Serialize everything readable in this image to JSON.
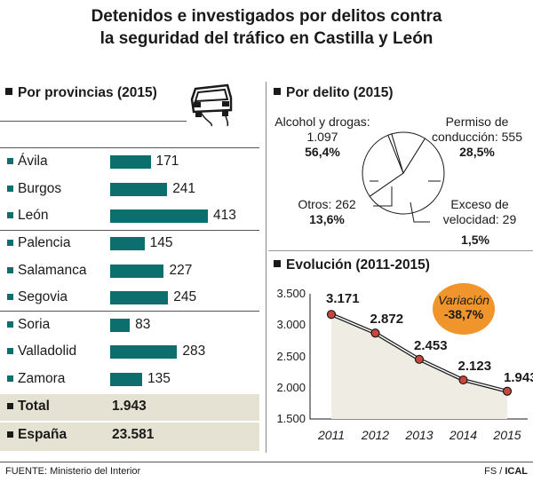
{
  "title": {
    "line1": "Detenidos e investigados por delitos contra",
    "line2": "la seguridad del tráfico en Castilla y León"
  },
  "provincias": {
    "heading": "Por provincias (2015)",
    "icon": "car-icon",
    "total": {
      "label": "Total",
      "value": "1.943"
    },
    "espana": {
      "label": "España",
      "value": "23.581"
    }
  },
  "delito": {
    "heading": "Por delito (2015)",
    "labels": {
      "alcohol_name": "Alcohol y drogas:",
      "alcohol_value": "1.097",
      "alcohol_pct": "56,4%",
      "permiso_name1": "Permiso de",
      "permiso_name2": "conducción: 555",
      "permiso_pct": "28,5%",
      "otros_name": "Otros: 262",
      "otros_pct": "13,6%",
      "exceso_name1": "Exceso de",
      "exceso_name2": "velocidad: 29",
      "exceso_pct": "1,5%"
    }
  },
  "evolucion": {
    "heading": "Evolución (2011-2015)",
    "badge_label": "Variación",
    "badge_value": "-38,7%",
    "badge_color": "#f0952c",
    "y_ticks": [
      "3.500",
      "3.000",
      "2.500",
      "2.000",
      "1.500"
    ],
    "x_ticks": [
      "2011",
      "2012",
      "2013",
      "2014",
      "2015"
    ],
    "data_labels": [
      "3.171",
      "2.872",
      "2.453",
      "2.123",
      "1.943"
    ]
  },
  "colors": {
    "bar": "#0d6e6e",
    "total_bg": "#e6e2d3",
    "badge": "#f0952c"
  },
  "footer": {
    "source": "FUENTE: Ministerio del Interior",
    "credit_fs": "FS",
    "credit_sep": " / ",
    "credit_ical": "ICAL"
  },
  "chart_data": [
    {
      "type": "bar",
      "title": "Por provincias (2015)",
      "categories": [
        "Ávila",
        "Burgos",
        "León",
        "Palencia",
        "Salamanca",
        "Segovia",
        "Soria",
        "Valladolid",
        "Zamora"
      ],
      "values": [
        171,
        241,
        413,
        145,
        227,
        245,
        83,
        283,
        135
      ],
      "orientation": "horizontal",
      "xlim": [
        0,
        413
      ]
    },
    {
      "type": "pie",
      "title": "Por delito (2015)",
      "categories": [
        "Alcohol y drogas",
        "Permiso de conducción",
        "Exceso de velocidad",
        "Otros"
      ],
      "values": [
        1097,
        555,
        29,
        262
      ],
      "percentages": [
        56.4,
        28.5,
        1.5,
        13.6
      ]
    },
    {
      "type": "line",
      "title": "Evolución (2011-2015)",
      "x": [
        2011,
        2012,
        2013,
        2014,
        2015
      ],
      "values": [
        3171,
        2872,
        2453,
        2123,
        1943
      ],
      "ylim": [
        1500,
        3500
      ],
      "yticks": [
        1500,
        2000,
        2500,
        3000,
        3500
      ],
      "grid": false
    }
  ]
}
